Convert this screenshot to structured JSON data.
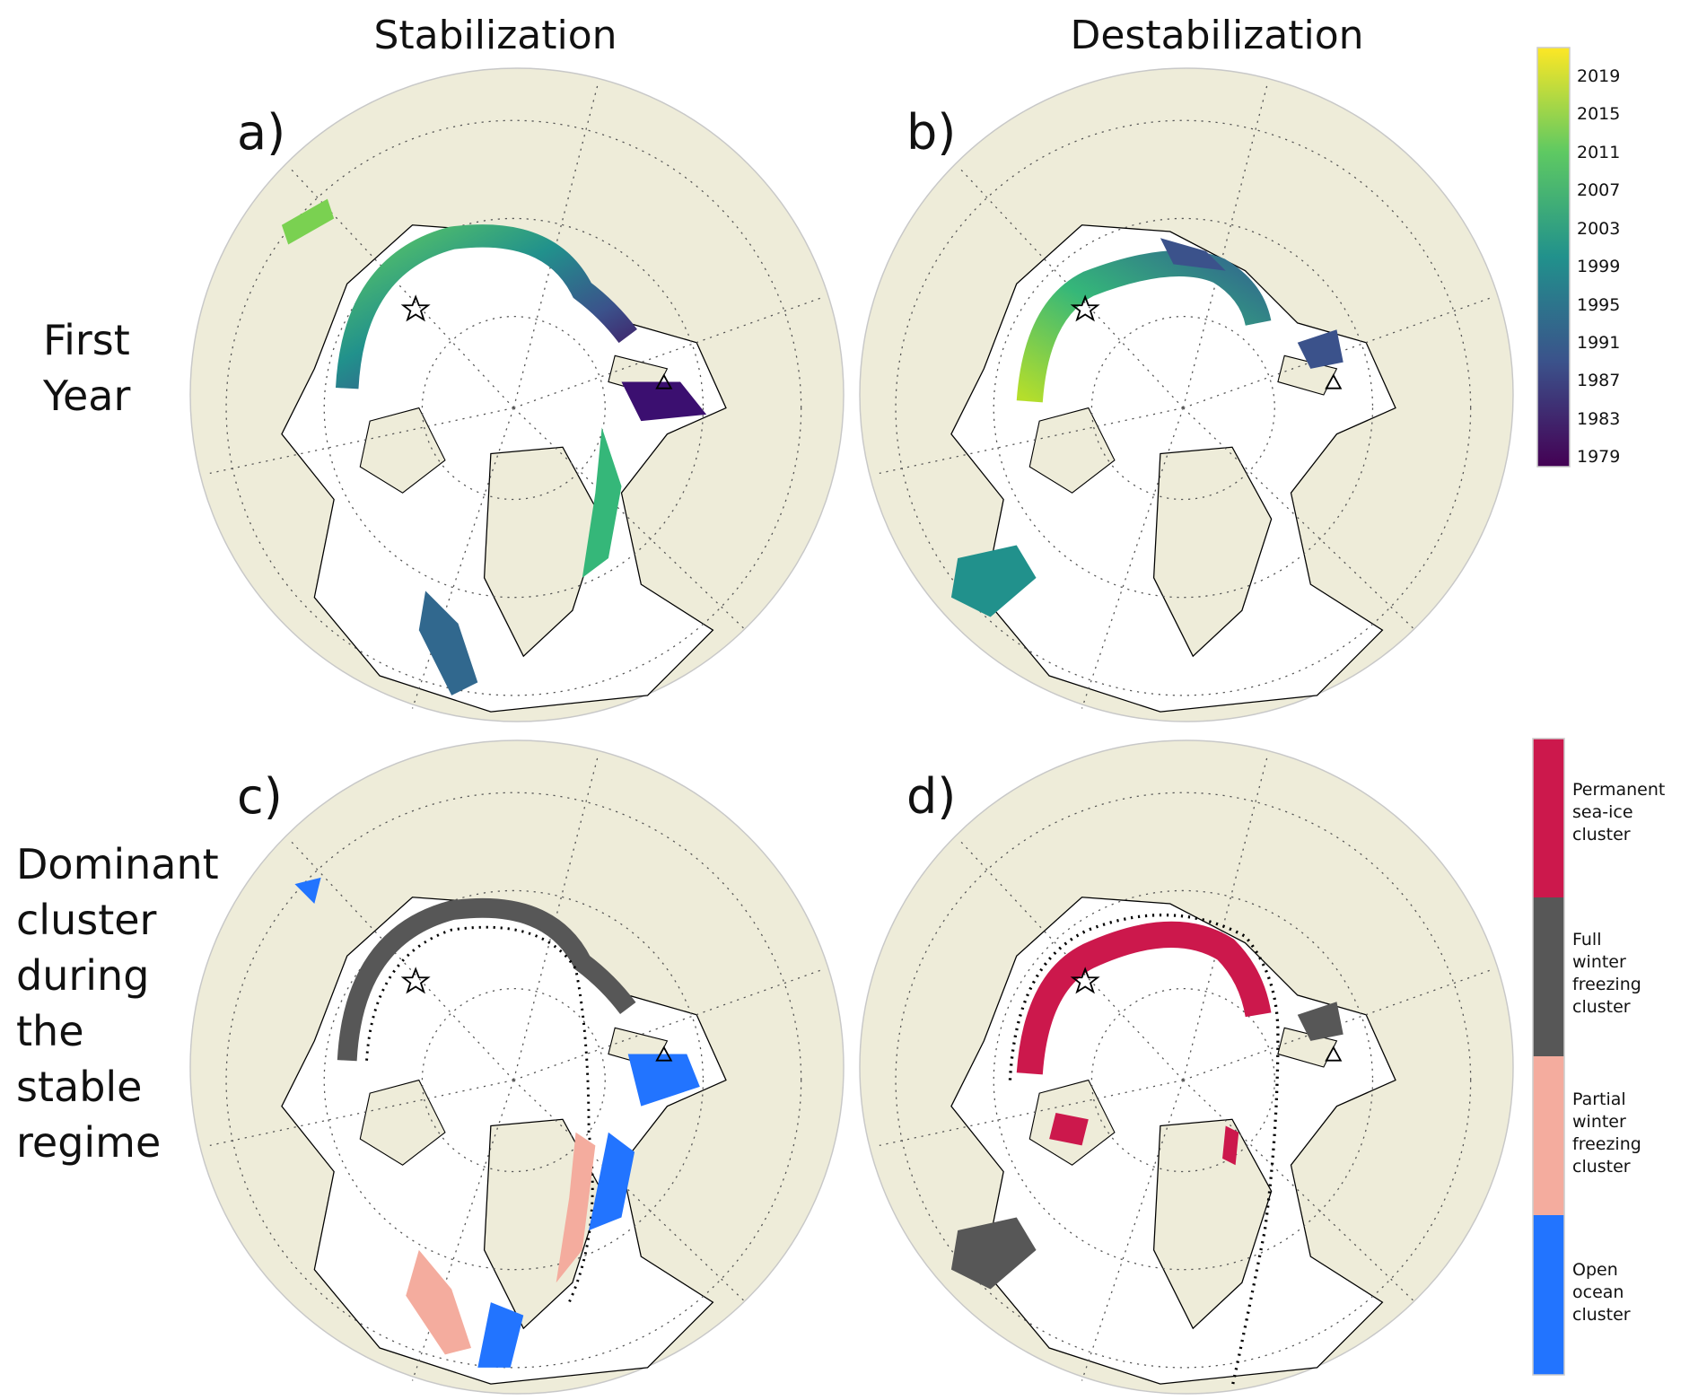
{
  "columns": {
    "left": "Stabilization",
    "right": "Destabilization"
  },
  "rows": {
    "top": [
      "First",
      "Year"
    ],
    "bottom": [
      "Dominant",
      "cluster",
      "during",
      "the",
      "stable",
      "regime"
    ]
  },
  "panels": {
    "a": "a)",
    "b": "b)",
    "c": "c)",
    "d": "d)"
  },
  "colorbar": {
    "ticks": [
      "2019",
      "2015",
      "2011",
      "2007",
      "2003",
      "1999",
      "1995",
      "1991",
      "1987",
      "1983",
      "1979"
    ],
    "range": [
      1978,
      2022
    ],
    "colormap": "viridis"
  },
  "legend": [
    {
      "label": [
        "Permanent",
        "sea-ice",
        "cluster"
      ],
      "color": "#cc184c"
    },
    {
      "label": [
        "Full",
        "winter",
        "freezing",
        "cluster"
      ],
      "color": "#575757"
    },
    {
      "label": [
        "Partial",
        "winter",
        "freezing",
        "cluster"
      ],
      "color": "#f4ac9e"
    },
    {
      "label": [
        "Open",
        "ocean",
        "cluster"
      ],
      "color": "#2274ff"
    }
  ],
  "colors": {
    "land": "#eeecd9",
    "ocean": "#ffffff",
    "coast": "#000000"
  },
  "markers": [
    "star-icon",
    "triangle-icon"
  ]
}
